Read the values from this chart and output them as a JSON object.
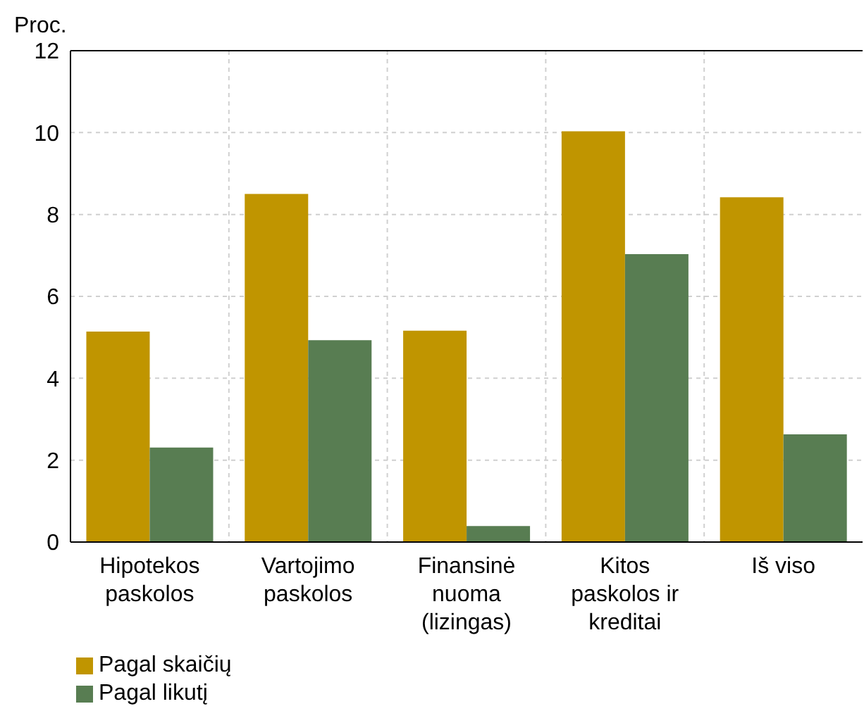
{
  "chart_data": {
    "type": "bar",
    "ylabel": "Proc.",
    "categories": [
      "Hipotekos paskolos",
      "Vartojimo paskolos",
      "Finansinė nuoma (lizingas)",
      "Kitos paskolos ir kreditai",
      "Iš viso"
    ],
    "series": [
      {
        "name": "Pagal skaičių",
        "color": "#c09500",
        "values": [
          5.14,
          8.5,
          5.16,
          10.03,
          8.42
        ]
      },
      {
        "name": "Pagal likutį",
        "color": "#587d52",
        "values": [
          2.31,
          4.93,
          0.39,
          7.03,
          2.63
        ]
      }
    ],
    "ylim": [
      0,
      12
    ],
    "yticks": [
      0,
      2,
      4,
      6,
      8,
      10,
      12
    ],
    "grid": true,
    "legend": "bottom left"
  }
}
